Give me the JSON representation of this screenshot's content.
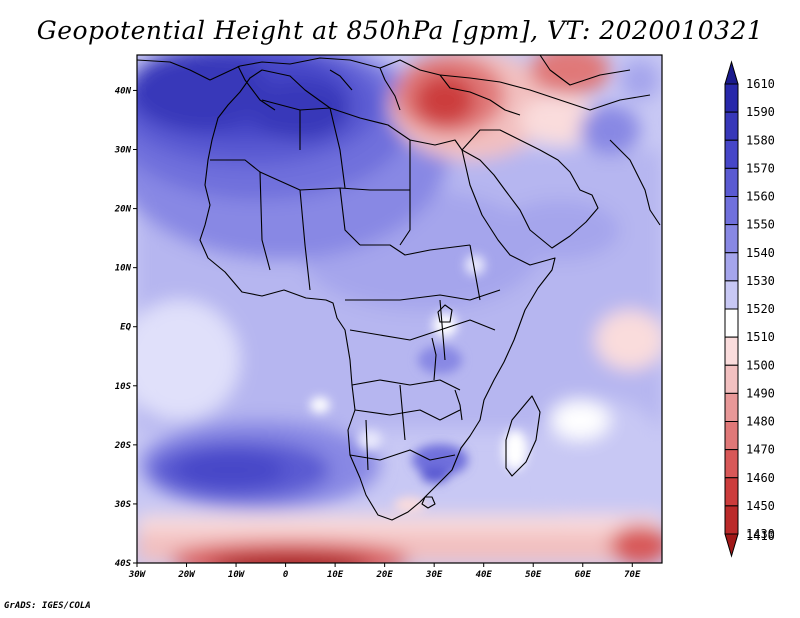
{
  "title": "Geopotential Height at 850hPa [gpm], VT: 2020010321",
  "credit": "GrADS: IGES/COLA",
  "map": {
    "region": "Africa",
    "lon_range": [
      -30,
      76
    ],
    "lat_range": [
      -40,
      46
    ],
    "x_ticks": [
      "30W",
      "20W",
      "10W",
      "0",
      "10E",
      "20E",
      "30E",
      "40E",
      "50E",
      "60E",
      "70E"
    ],
    "x_tick_lons": [
      -30,
      -20,
      -10,
      0,
      10,
      20,
      30,
      40,
      50,
      60,
      70
    ],
    "y_ticks": [
      "40N",
      "30N",
      "20N",
      "10N",
      "EQ",
      "10S",
      "20S",
      "30S",
      "40S"
    ],
    "y_tick_lats": [
      40,
      30,
      20,
      10,
      0,
      -10,
      -20,
      -30,
      -40
    ]
  },
  "colorbar": {
    "levels": [
      "1610",
      "1590",
      "1580",
      "1570",
      "1560",
      "1550",
      "1540",
      "1530",
      "1520",
      "1510",
      "1500",
      "1490",
      "1480",
      "1470",
      "1460",
      "1450",
      "1430",
      "1410"
    ],
    "colors": [
      "#1e1e96",
      "#2828aa",
      "#3737b9",
      "#4646c8",
      "#5a5ad2",
      "#7070dc",
      "#8888e4",
      "#a5a5ec",
      "#c8c8f4",
      "#ffffff",
      "#fadcdc",
      "#f2c0c0",
      "#e89898",
      "#e07878",
      "#d85858",
      "#cc3c3c",
      "#bb2a2a",
      "#a01818"
    ],
    "top_arrow_color": "#1a1a8c",
    "bottom_arrow_color": "#a01818"
  }
}
